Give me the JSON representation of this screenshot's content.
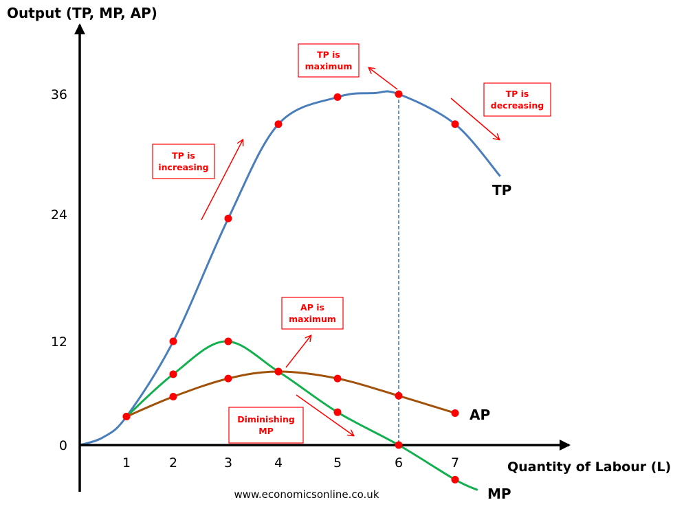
{
  "chart_data": {
    "type": "line",
    "title": "",
    "ylabel": "Output (TP, MP, AP)",
    "xlabel": "Quantity of Labour (L)",
    "x_ticks": [
      1,
      2,
      3,
      4,
      5,
      6,
      7
    ],
    "y_ticks": [
      0,
      12,
      24,
      36
    ],
    "origin_label": "0",
    "grid": false,
    "series": [
      {
        "name": "TP",
        "color": "#4a7ebb",
        "curve": [
          [
            0,
            0
          ],
          [
            0.5,
            0.9
          ],
          [
            1,
            3.3
          ],
          [
            2,
            12
          ],
          [
            3,
            23.6
          ],
          [
            4,
            33
          ],
          [
            5,
            35.7
          ],
          [
            5.6,
            36.1
          ],
          [
            6,
            36
          ],
          [
            7,
            33
          ],
          [
            7.8,
            27.8
          ]
        ],
        "points": [
          [
            1,
            3.3
          ],
          [
            2,
            12
          ],
          [
            3,
            23.6
          ],
          [
            4,
            33
          ],
          [
            5,
            35.7
          ],
          [
            6,
            36
          ],
          [
            7,
            33
          ]
        ]
      },
      {
        "name": "MP",
        "color": "#14b050",
        "curve": [
          [
            1,
            3.3
          ],
          [
            2,
            8.2
          ],
          [
            2.95,
            12
          ],
          [
            4,
            8.5
          ],
          [
            5,
            3.8
          ],
          [
            6,
            0
          ],
          [
            7,
            -4
          ],
          [
            7.4,
            -5.2
          ]
        ],
        "points": [
          [
            2,
            8.2
          ],
          [
            3,
            12
          ],
          [
            4,
            8.5
          ],
          [
            5,
            3.8
          ],
          [
            6,
            0
          ],
          [
            7,
            -4
          ]
        ]
      },
      {
        "name": "AP",
        "color": "#a0520a",
        "curve": [
          [
            1,
            3.3
          ],
          [
            2,
            5.6
          ],
          [
            3,
            7.7
          ],
          [
            4,
            8.5
          ],
          [
            5,
            7.7
          ],
          [
            6,
            5.7
          ],
          [
            7,
            3.7
          ]
        ],
        "points": [
          [
            1,
            3.3
          ],
          [
            2,
            5.6
          ],
          [
            3,
            7.7
          ],
          [
            4,
            8.5
          ],
          [
            5,
            7.7
          ],
          [
            6,
            5.7
          ],
          [
            7,
            3.7
          ]
        ]
      }
    ],
    "marker_color": "#ff0000",
    "reference_line": {
      "x": 6,
      "style": "dashed",
      "color": "#2e75b6"
    },
    "annotations": [
      {
        "text": [
          "TP is",
          "increasing"
        ]
      },
      {
        "text": [
          "TP is",
          "maximum"
        ]
      },
      {
        "text": [
          "TP is",
          "decreasing"
        ]
      },
      {
        "text": [
          "AP is",
          "maximum"
        ]
      },
      {
        "text": [
          "Diminishing",
          "MP"
        ]
      }
    ],
    "source": "www.economicsonline.co.uk"
  }
}
